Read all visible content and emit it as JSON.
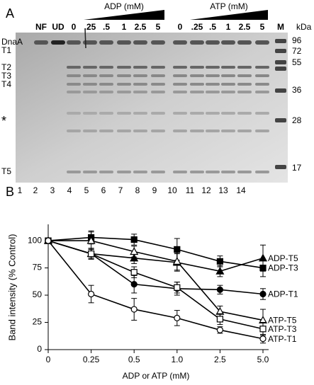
{
  "panel_a": {
    "label": "A",
    "treatments": [
      "ADP (mM)",
      "ATP (mM)"
    ],
    "lane_labels": [
      "NF",
      "UD",
      "0",
      ".25",
      ".5",
      "1",
      "2.5",
      "5",
      "0",
      ".25",
      ".5",
      "1",
      "2.5",
      "5",
      "M"
    ],
    "size_unit": "kDa",
    "band_labels": [
      "DnaA",
      "T1",
      "T2",
      "T3",
      "T4",
      "*",
      "T5"
    ],
    "marker_sizes": [
      96,
      72,
      55,
      36,
      28,
      17
    ],
    "lane_numbers": [
      1,
      2,
      3,
      4,
      5,
      6,
      7,
      8,
      9,
      10,
      11,
      12,
      13,
      14
    ]
  },
  "chart_data": {
    "type": "line",
    "panel_label": "B",
    "y_label": "Band intensity (% Control)",
    "x_label": "ADP or ATP (mM)",
    "categories": [
      "0",
      "0.25",
      "0.5",
      "1.0",
      "2.5",
      "5.0"
    ],
    "ylim": [
      0,
      115
    ],
    "yticks": [
      0,
      25,
      50,
      75,
      100
    ],
    "series": [
      {
        "name": "ADP-T5",
        "color": "#000000",
        "marker": "triangle",
        "filled": true,
        "values": [
          100,
          88,
          84,
          80,
          72,
          84
        ],
        "errors": [
          0,
          4,
          5,
          8,
          5,
          12
        ]
      },
      {
        "name": "ADP-T3",
        "color": "#000000",
        "marker": "square",
        "filled": true,
        "values": [
          100,
          103,
          101,
          92,
          81,
          75
        ],
        "errors": [
          0,
          6,
          5,
          10,
          5,
          8
        ]
      },
      {
        "name": "ADP-T1",
        "color": "#000000",
        "marker": "circle",
        "filled": true,
        "values": [
          100,
          88,
          60,
          56,
          55,
          51
        ],
        "errors": [
          0,
          5,
          8,
          6,
          4,
          5
        ]
      },
      {
        "name": "ATP-T5",
        "color": "#000000",
        "marker": "triangle",
        "filled": false,
        "values": [
          100,
          100,
          90,
          81,
          35,
          27
        ],
        "errors": [
          0,
          8,
          5,
          8,
          5,
          10
        ]
      },
      {
        "name": "ATP-T3",
        "color": "#000000",
        "marker": "square",
        "filled": false,
        "values": [
          100,
          88,
          71,
          57,
          28,
          19
        ],
        "errors": [
          0,
          5,
          5,
          5,
          5,
          6
        ]
      },
      {
        "name": "ATP-T1",
        "color": "#000000",
        "marker": "circle",
        "filled": false,
        "values": [
          100,
          51,
          37,
          29,
          18,
          10
        ],
        "errors": [
          0,
          8,
          10,
          7,
          3,
          4
        ]
      }
    ]
  }
}
